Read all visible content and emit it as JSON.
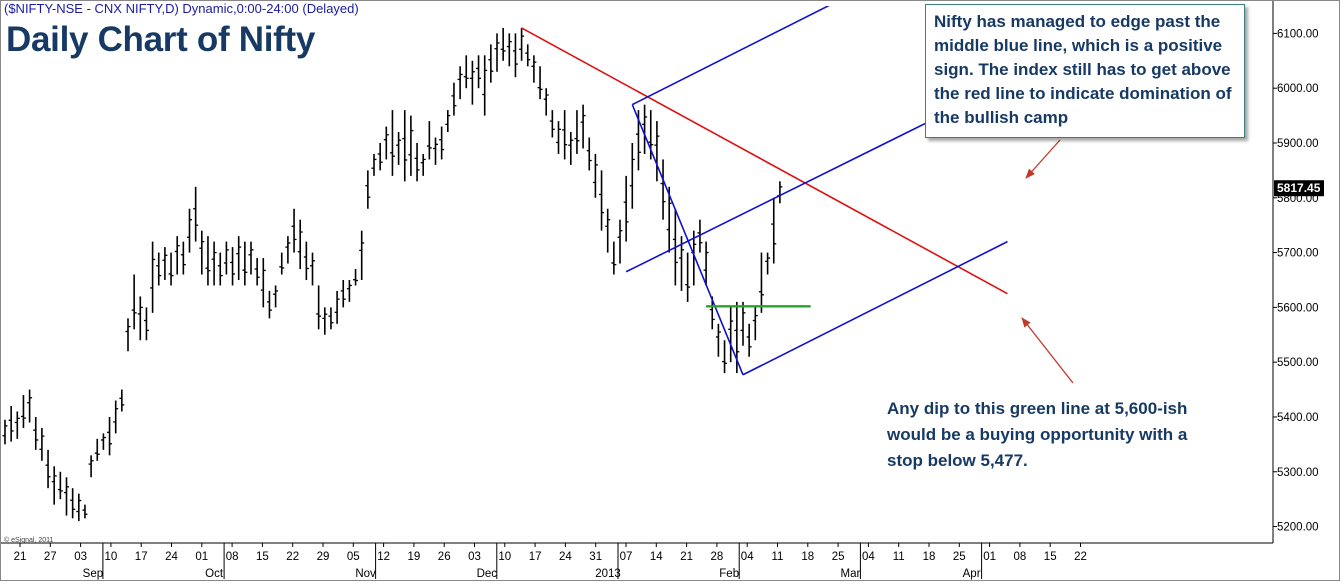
{
  "header": {
    "source_line": "($NIFTY-NSE - CNX NIFTY,D) Dynamic,0:00-24:00 (Delayed)",
    "title": "Daily Chart of Nifty",
    "copyright": "© eSignal, 2011"
  },
  "annotations": {
    "callout": "Nifty has managed to edge past the middle blue line, which is a positive sign. The index still has to get above the red line to indicate domination of the bullish camp",
    "note": "Any dip to this green line at 5,600-ish would be a buying opportunity with a stop below 5,477."
  },
  "colors": {
    "price_bars": "#000000",
    "resistance_line": "#e01010",
    "channel_lines": "#1010d0",
    "support_line": "#2ca02c",
    "arrows": "#c0392b",
    "title": "#173a64"
  },
  "chart_data": {
    "type": "bar",
    "subtype": "ohlc",
    "title": "Daily Chart of Nifty",
    "ylim": [
      5170,
      6150
    ],
    "y_axis_position": "right",
    "y_ticks": [
      5200,
      5300,
      5400,
      5500,
      5600,
      5700,
      5800,
      5900,
      6000,
      6100
    ],
    "y_tick_labels": [
      "5200.00",
      "5300.00",
      "5400.00",
      "5500.00",
      "5600.00",
      "5700.00",
      "5800.00",
      "5900.00",
      "6000.00",
      "6100.00"
    ],
    "last_price_label": "5817.45",
    "last_price": 5817.45,
    "x_tick_labels": [
      "21",
      "27",
      "03",
      "10",
      "17",
      "24",
      "01",
      "08",
      "15",
      "22",
      "29",
      "05",
      "12",
      "19",
      "26",
      "03",
      "10",
      "17",
      "24",
      "31",
      "07",
      "14",
      "21",
      "28",
      "04",
      "11",
      "18",
      "25",
      "04",
      "11",
      "18",
      "25",
      "01",
      "08",
      "15",
      "22"
    ],
    "x_month_labels": [
      "Sep",
      "Oct",
      "Nov",
      "Dec",
      "2013",
      "Feb",
      "Mar",
      "Apr"
    ],
    "grid": false,
    "series": [
      {
        "values": [
          {
            "h": 5395,
            "l": 5350
          },
          {
            "h": 5420,
            "l": 5355
          },
          {
            "h": 5410,
            "l": 5360
          },
          {
            "h": 5440,
            "l": 5380
          },
          {
            "h": 5450,
            "l": 5390
          },
          {
            "h": 5400,
            "l": 5340
          },
          {
            "h": 5380,
            "l": 5320
          },
          {
            "h": 5340,
            "l": 5270
          },
          {
            "h": 5310,
            "l": 5240
          },
          {
            "h": 5300,
            "l": 5250
          },
          {
            "h": 5290,
            "l": 5220
          },
          {
            "h": 5270,
            "l": 5215
          },
          {
            "h": 5260,
            "l": 5210
          },
          {
            "h": 5240,
            "l": 5215
          },
          {
            "h": 5330,
            "l": 5290
          },
          {
            "h": 5360,
            "l": 5320
          },
          {
            "h": 5370,
            "l": 5340
          },
          {
            "h": 5400,
            "l": 5330
          },
          {
            "h": 5430,
            "l": 5370
          },
          {
            "h": 5450,
            "l": 5410
          },
          {
            "h": 5580,
            "l": 5520
          },
          {
            "h": 5660,
            "l": 5560
          },
          {
            "h": 5620,
            "l": 5540
          },
          {
            "h": 5600,
            "l": 5540
          },
          {
            "h": 5720,
            "l": 5590
          },
          {
            "h": 5700,
            "l": 5640
          },
          {
            "h": 5710,
            "l": 5650
          },
          {
            "h": 5700,
            "l": 5640
          },
          {
            "h": 5730,
            "l": 5660
          },
          {
            "h": 5720,
            "l": 5660
          },
          {
            "h": 5780,
            "l": 5700
          },
          {
            "h": 5820,
            "l": 5720
          },
          {
            "h": 5740,
            "l": 5660
          },
          {
            "h": 5730,
            "l": 5640
          },
          {
            "h": 5720,
            "l": 5640
          },
          {
            "h": 5700,
            "l": 5640
          },
          {
            "h": 5720,
            "l": 5660
          },
          {
            "h": 5710,
            "l": 5640
          },
          {
            "h": 5730,
            "l": 5650
          },
          {
            "h": 5720,
            "l": 5640
          },
          {
            "h": 5720,
            "l": 5660
          },
          {
            "h": 5690,
            "l": 5640
          },
          {
            "h": 5690,
            "l": 5600
          },
          {
            "h": 5630,
            "l": 5580
          },
          {
            "h": 5640,
            "l": 5600
          },
          {
            "h": 5700,
            "l": 5660
          },
          {
            "h": 5730,
            "l": 5680
          },
          {
            "h": 5780,
            "l": 5700
          },
          {
            "h": 5760,
            "l": 5670
          },
          {
            "h": 5720,
            "l": 5650
          },
          {
            "h": 5700,
            "l": 5640
          },
          {
            "h": 5640,
            "l": 5560
          },
          {
            "h": 5600,
            "l": 5550
          },
          {
            "h": 5600,
            "l": 5560
          },
          {
            "h": 5630,
            "l": 5570
          },
          {
            "h": 5650,
            "l": 5600
          },
          {
            "h": 5650,
            "l": 5610
          },
          {
            "h": 5670,
            "l": 5640
          },
          {
            "h": 5740,
            "l": 5650
          },
          {
            "h": 5850,
            "l": 5780
          },
          {
            "h": 5880,
            "l": 5840
          },
          {
            "h": 5900,
            "l": 5850
          },
          {
            "h": 5930,
            "l": 5870
          },
          {
            "h": 5960,
            "l": 5840
          },
          {
            "h": 5920,
            "l": 5860
          },
          {
            "h": 5960,
            "l": 5830
          },
          {
            "h": 5950,
            "l": 5840
          },
          {
            "h": 5900,
            "l": 5830
          },
          {
            "h": 5880,
            "l": 5840
          },
          {
            "h": 5940,
            "l": 5870
          },
          {
            "h": 5910,
            "l": 5860
          },
          {
            "h": 5930,
            "l": 5870
          },
          {
            "h": 5960,
            "l": 5920
          },
          {
            "h": 6010,
            "l": 5950
          },
          {
            "h": 6040,
            "l": 5980
          },
          {
            "h": 6060,
            "l": 6000
          },
          {
            "h": 6050,
            "l": 5970
          },
          {
            "h": 6060,
            "l": 6000
          },
          {
            "h": 6060,
            "l": 5950
          },
          {
            "h": 6080,
            "l": 6010
          },
          {
            "h": 6100,
            "l": 6030
          },
          {
            "h": 6110,
            "l": 6050
          },
          {
            "h": 6100,
            "l": 6040
          },
          {
            "h": 6100,
            "l": 6020
          },
          {
            "h": 6110,
            "l": 6050
          },
          {
            "h": 6080,
            "l": 6040
          },
          {
            "h": 6060,
            "l": 6010
          },
          {
            "h": 6040,
            "l": 5980
          },
          {
            "h": 6000,
            "l": 5950
          },
          {
            "h": 5960,
            "l": 5910
          },
          {
            "h": 5940,
            "l": 5880
          },
          {
            "h": 5960,
            "l": 5870
          },
          {
            "h": 5920,
            "l": 5860
          },
          {
            "h": 5960,
            "l": 5880
          },
          {
            "h": 5970,
            "l": 5890
          },
          {
            "h": 5910,
            "l": 5850
          },
          {
            "h": 5880,
            "l": 5800
          },
          {
            "h": 5850,
            "l": 5740
          },
          {
            "h": 5780,
            "l": 5700
          },
          {
            "h": 5720,
            "l": 5660
          },
          {
            "h": 5760,
            "l": 5680
          },
          {
            "h": 5840,
            "l": 5720
          },
          {
            "h": 5900,
            "l": 5780
          },
          {
            "h": 5960,
            "l": 5850
          },
          {
            "h": 5970,
            "l": 5880
          },
          {
            "h": 5960,
            "l": 5870
          },
          {
            "h": 5940,
            "l": 5830
          },
          {
            "h": 5870,
            "l": 5760
          },
          {
            "h": 5820,
            "l": 5700
          },
          {
            "h": 5780,
            "l": 5640
          },
          {
            "h": 5730,
            "l": 5630
          },
          {
            "h": 5700,
            "l": 5610
          },
          {
            "h": 5740,
            "l": 5640
          },
          {
            "h": 5760,
            "l": 5700
          },
          {
            "h": 5720,
            "l": 5640
          },
          {
            "h": 5620,
            "l": 5560
          },
          {
            "h": 5570,
            "l": 5510
          },
          {
            "h": 5540,
            "l": 5480
          },
          {
            "h": 5600,
            "l": 5500
          },
          {
            "h": 5610,
            "l": 5480
          },
          {
            "h": 5610,
            "l": 5530
          },
          {
            "h": 5570,
            "l": 5510
          },
          {
            "h": 5600,
            "l": 5540
          },
          {
            "h": 5700,
            "l": 5590
          },
          {
            "h": 5700,
            "l": 5660
          },
          {
            "h": 5800,
            "l": 5680
          },
          {
            "h": 5830,
            "l": 5790
          }
        ]
      }
    ],
    "overlay_lines": [
      {
        "color": "red",
        "from": {
          "bar": 84,
          "price": 6110
        },
        "to": {
          "bar": 163,
          "price": 5625
        }
      },
      {
        "color": "blue",
        "from": {
          "bar": 102,
          "price": 5970
        },
        "to": {
          "bar": 120,
          "price": 5477
        }
      },
      {
        "color": "blue",
        "from": {
          "bar": 102,
          "price": 5970
        },
        "to": {
          "bar": 163,
          "price": 6315
        }
      },
      {
        "color": "blue",
        "from": {
          "bar": 101,
          "price": 5665
        },
        "to": {
          "bar": 163,
          "price": 6010
        }
      },
      {
        "color": "blue",
        "from": {
          "bar": 120,
          "price": 5477
        },
        "to": {
          "bar": 163,
          "price": 5720
        }
      },
      {
        "color": "green",
        "from": {
          "bar": 114,
          "price": 5602
        },
        "to": {
          "bar": 131,
          "price": 5602
        }
      }
    ]
  }
}
